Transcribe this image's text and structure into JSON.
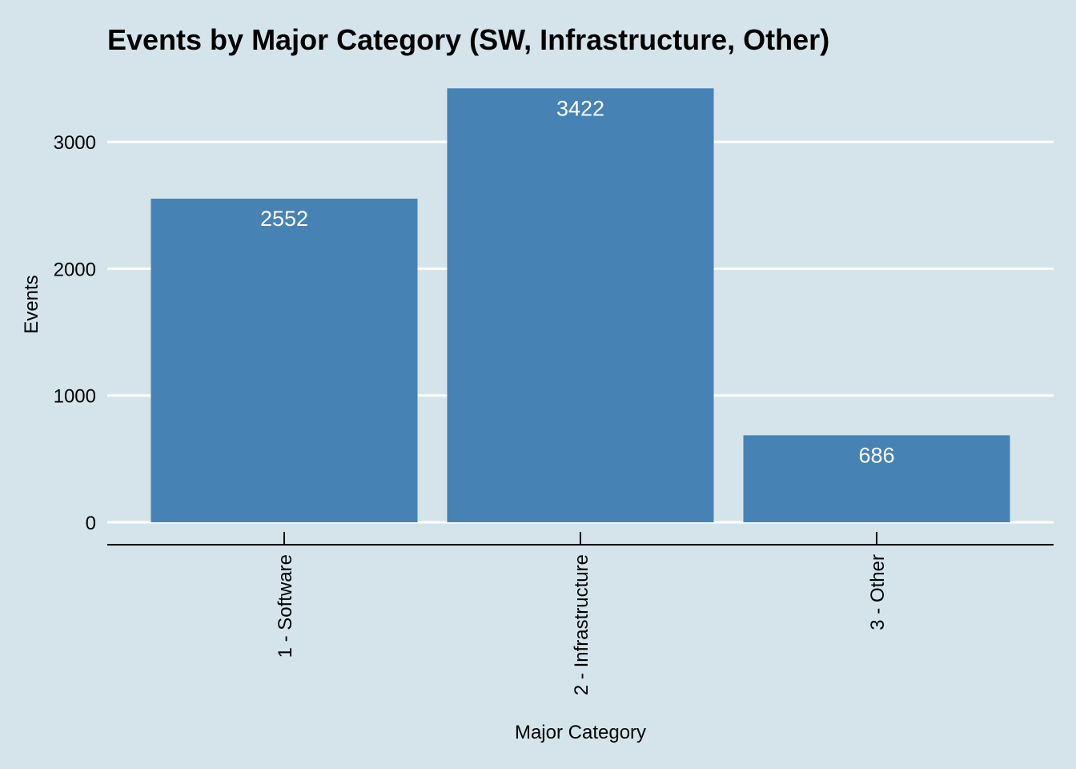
{
  "chart_data": {
    "type": "bar",
    "title": "Events by Major Category (SW, Infrastructure, Other)",
    "xlabel": "Major Category",
    "ylabel": "Events",
    "categories": [
      "1 - Software",
      "2 - Infrastructure",
      "3 - Other"
    ],
    "values": [
      2552,
      3422,
      686
    ],
    "data_labels": [
      "2552",
      "3422",
      "686"
    ],
    "ylim": [
      0,
      3422
    ],
    "yticks": [
      0,
      1000,
      2000,
      3000
    ],
    "ytick_labels": [
      "0",
      "1000",
      "2000",
      "3000"
    ],
    "grid": "horizontal major",
    "legend": "none",
    "colors": {
      "background": "#d5e4eb",
      "bar": "#4682b4",
      "gridline": "#ffffff",
      "axis_line": "#000000",
      "bar_label": "#ffffff"
    }
  }
}
